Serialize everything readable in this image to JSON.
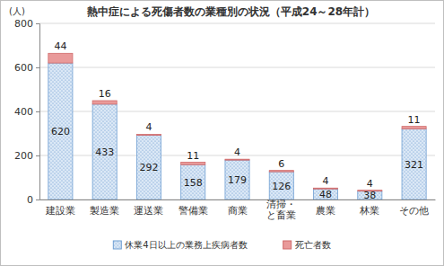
{
  "chart_data": {
    "type": "bar",
    "title": "熱中症による死傷者数の業種別の状況（平成24～28年計）",
    "ylabel": "(人)",
    "categories": [
      "建設業",
      "製造業",
      "運送業",
      "警備業",
      "商業",
      "清掃・\nと畜業",
      "農業",
      "林業",
      "その他"
    ],
    "series": [
      {
        "name": "休業4日以上の業務上疾病者数",
        "color": "#dbe8f6",
        "values": [
          620,
          433,
          292,
          158,
          179,
          126,
          48,
          38,
          321
        ]
      },
      {
        "name": "死亡者数",
        "color": "#e99a9a",
        "values": [
          44,
          16,
          4,
          11,
          4,
          6,
          4,
          4,
          11
        ]
      }
    ],
    "stacked": true,
    "data_labels": true,
    "ylim": [
      0,
      800
    ],
    "yticks": [
      0,
      200,
      400,
      600,
      800
    ],
    "grid": true,
    "legend": "bottom"
  }
}
